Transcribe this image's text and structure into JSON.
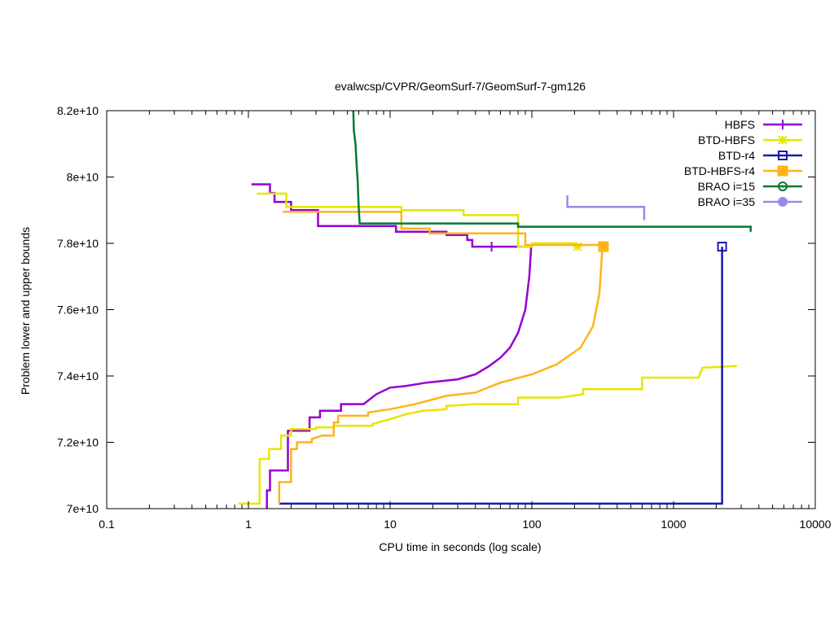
{
  "chart_data": {
    "type": "line",
    "title": "evalwcsp/CVPR/GeomSurf-7/GeomSurf-7-gm126",
    "xlabel": "CPU time in seconds (log scale)",
    "ylabel": "Problem lower and upper bounds",
    "x_scale": "log",
    "xlim": [
      0.1,
      10000
    ],
    "ylim": [
      70000000000,
      82000000000
    ],
    "x_ticks": [
      {
        "v": 0.1,
        "label": "0.1"
      },
      {
        "v": 1,
        "label": "1"
      },
      {
        "v": 10,
        "label": "10"
      },
      {
        "v": 100,
        "label": "100"
      },
      {
        "v": 1000,
        "label": "1000"
      },
      {
        "v": 10000,
        "label": "10000"
      }
    ],
    "y_ticks": [
      {
        "v": 70000000000,
        "label": "7e+10"
      },
      {
        "v": 72000000000,
        "label": "7.2e+10"
      },
      {
        "v": 74000000000,
        "label": "7.4e+10"
      },
      {
        "v": 76000000000,
        "label": "7.6e+10"
      },
      {
        "v": 78000000000,
        "label": "7.8e+10"
      },
      {
        "v": 80000000000,
        "label": "8e+10"
      },
      {
        "v": 82000000000,
        "label": "8.2e+10"
      }
    ],
    "grid": false,
    "legend_position": "top-right",
    "series": [
      {
        "name": "HBFS",
        "color": "#9400d3",
        "marker": "plus",
        "upper": [
          [
            1.05,
            79.78
          ],
          [
            1.42,
            79.78
          ],
          [
            1.42,
            79.52
          ],
          [
            1.53,
            79.52
          ],
          [
            1.53,
            79.25
          ],
          [
            2.0,
            79.25
          ],
          [
            2.0,
            79.0
          ],
          [
            3.1,
            79.0
          ],
          [
            3.1,
            78.52
          ],
          [
            11,
            78.52
          ],
          [
            11,
            78.35
          ],
          [
            25,
            78.35
          ],
          [
            25,
            78.25
          ],
          [
            35,
            78.25
          ],
          [
            35,
            78.1
          ],
          [
            38,
            78.1
          ],
          [
            38,
            77.9
          ],
          [
            100,
            77.9
          ]
        ],
        "lower": [
          [
            1.35,
            70.0
          ],
          [
            1.35,
            70.55
          ],
          [
            1.42,
            70.55
          ],
          [
            1.42,
            71.15
          ],
          [
            1.9,
            71.15
          ],
          [
            1.9,
            72.35
          ],
          [
            2.7,
            72.35
          ],
          [
            2.7,
            72.75
          ],
          [
            3.2,
            72.75
          ],
          [
            3.2,
            72.95
          ],
          [
            4.5,
            72.95
          ],
          [
            4.5,
            73.15
          ],
          [
            6.5,
            73.15
          ],
          [
            8,
            73.45
          ],
          [
            10,
            73.65
          ],
          [
            13,
            73.7
          ],
          [
            18,
            73.8
          ],
          [
            30,
            73.9
          ],
          [
            40,
            74.05
          ],
          [
            50,
            74.3
          ],
          [
            60,
            74.55
          ],
          [
            70,
            74.85
          ],
          [
            80,
            75.3
          ],
          [
            90,
            76.0
          ],
          [
            96,
            77.0
          ],
          [
            99,
            77.9
          ]
        ],
        "marker_points": [
          [
            52,
            77.9
          ]
        ]
      },
      {
        "name": "BTD-HBFS",
        "color": "#e6e600",
        "marker": "star",
        "upper": [
          [
            1.15,
            79.5
          ],
          [
            1.85,
            79.5
          ],
          [
            1.85,
            79.1
          ],
          [
            12,
            79.1
          ],
          [
            12,
            79.0
          ],
          [
            33,
            79.0
          ],
          [
            33,
            78.85
          ],
          [
            80,
            78.85
          ],
          [
            80,
            77.9
          ],
          [
            100,
            77.9
          ],
          [
            100,
            78.0
          ],
          [
            210,
            78.0
          ]
        ],
        "lower": [
          [
            0.85,
            70.15
          ],
          [
            1.2,
            70.15
          ],
          [
            1.2,
            71.5
          ],
          [
            1.4,
            71.5
          ],
          [
            1.4,
            71.8
          ],
          [
            1.7,
            71.8
          ],
          [
            1.7,
            72.2
          ],
          [
            2.0,
            72.2
          ],
          [
            2.0,
            72.4
          ],
          [
            3.0,
            72.4
          ],
          [
            3.0,
            72.45
          ],
          [
            4.0,
            72.45
          ],
          [
            4.0,
            72.5
          ],
          [
            7.5,
            72.5
          ],
          [
            7.5,
            72.55
          ],
          [
            10,
            72.7
          ],
          [
            13,
            72.85
          ],
          [
            17,
            72.95
          ],
          [
            25,
            73.0
          ],
          [
            25,
            73.1
          ],
          [
            40,
            73.15
          ],
          [
            80,
            73.15
          ],
          [
            80,
            73.35
          ],
          [
            160,
            73.35
          ],
          [
            230,
            73.45
          ],
          [
            230,
            73.6
          ],
          [
            600,
            73.6
          ],
          [
            600,
            73.95
          ],
          [
            1500,
            73.95
          ],
          [
            1600,
            74.25
          ],
          [
            2800,
            74.3
          ]
        ],
        "marker_points": [
          [
            210,
            77.9
          ]
        ]
      },
      {
        "name": "BTD-r4",
        "color": "#1a1aaa",
        "marker": "square",
        "upper": [],
        "lower": [
          [
            1.65,
            70.15
          ],
          [
            2200,
            70.15
          ],
          [
            2200,
            77.9
          ]
        ],
        "marker_points": [
          [
            2200,
            77.9
          ]
        ]
      },
      {
        "name": "BTD-HBFS-r4",
        "color": "#ffb31a",
        "marker": "filled-square",
        "upper": [
          [
            1.75,
            78.95
          ],
          [
            12,
            78.95
          ],
          [
            12,
            78.45
          ],
          [
            19,
            78.45
          ],
          [
            19,
            78.3
          ],
          [
            90,
            78.3
          ],
          [
            90,
            77.95
          ],
          [
            320,
            77.95
          ]
        ],
        "lower": [
          [
            1.65,
            70.15
          ],
          [
            1.65,
            70.8
          ],
          [
            2.0,
            70.8
          ],
          [
            2.0,
            71.8
          ],
          [
            2.2,
            71.8
          ],
          [
            2.2,
            72.0
          ],
          [
            2.8,
            72.0
          ],
          [
            2.8,
            72.1
          ],
          [
            3.3,
            72.2
          ],
          [
            4.0,
            72.2
          ],
          [
            4.0,
            72.6
          ],
          [
            4.3,
            72.6
          ],
          [
            4.3,
            72.8
          ],
          [
            7,
            72.8
          ],
          [
            7,
            72.9
          ],
          [
            10,
            73.0
          ],
          [
            15,
            73.15
          ],
          [
            25,
            73.4
          ],
          [
            40,
            73.5
          ],
          [
            60,
            73.8
          ],
          [
            100,
            74.05
          ],
          [
            150,
            74.35
          ],
          [
            220,
            74.85
          ],
          [
            270,
            75.5
          ],
          [
            300,
            76.5
          ],
          [
            315,
            77.9
          ]
        ],
        "marker_points": [
          [
            320,
            77.9
          ]
        ]
      },
      {
        "name": "BRAO i=15",
        "color": "#007a33",
        "marker": "circle",
        "upper": [
          [
            5.5,
            82.0
          ],
          [
            5.55,
            81.4
          ],
          [
            5.7,
            81.0
          ],
          [
            5.8,
            80.4
          ],
          [
            5.9,
            79.9
          ],
          [
            6.0,
            79.1
          ],
          [
            6.1,
            78.6
          ],
          [
            80,
            78.6
          ],
          [
            80,
            78.5
          ],
          [
            3500,
            78.5
          ],
          [
            3500,
            78.35
          ]
        ],
        "lower": [],
        "marker_points": []
      },
      {
        "name": "BRAO i=35",
        "color": "#9f87e8",
        "marker": "filled-circle",
        "upper": [
          [
            178,
            79.45
          ],
          [
            178,
            79.1
          ],
          [
            620,
            79.1
          ],
          [
            620,
            78.7
          ]
        ],
        "lower": [],
        "marker_points": []
      }
    ],
    "y_unit_note": "series y values are in units of 1e9"
  }
}
